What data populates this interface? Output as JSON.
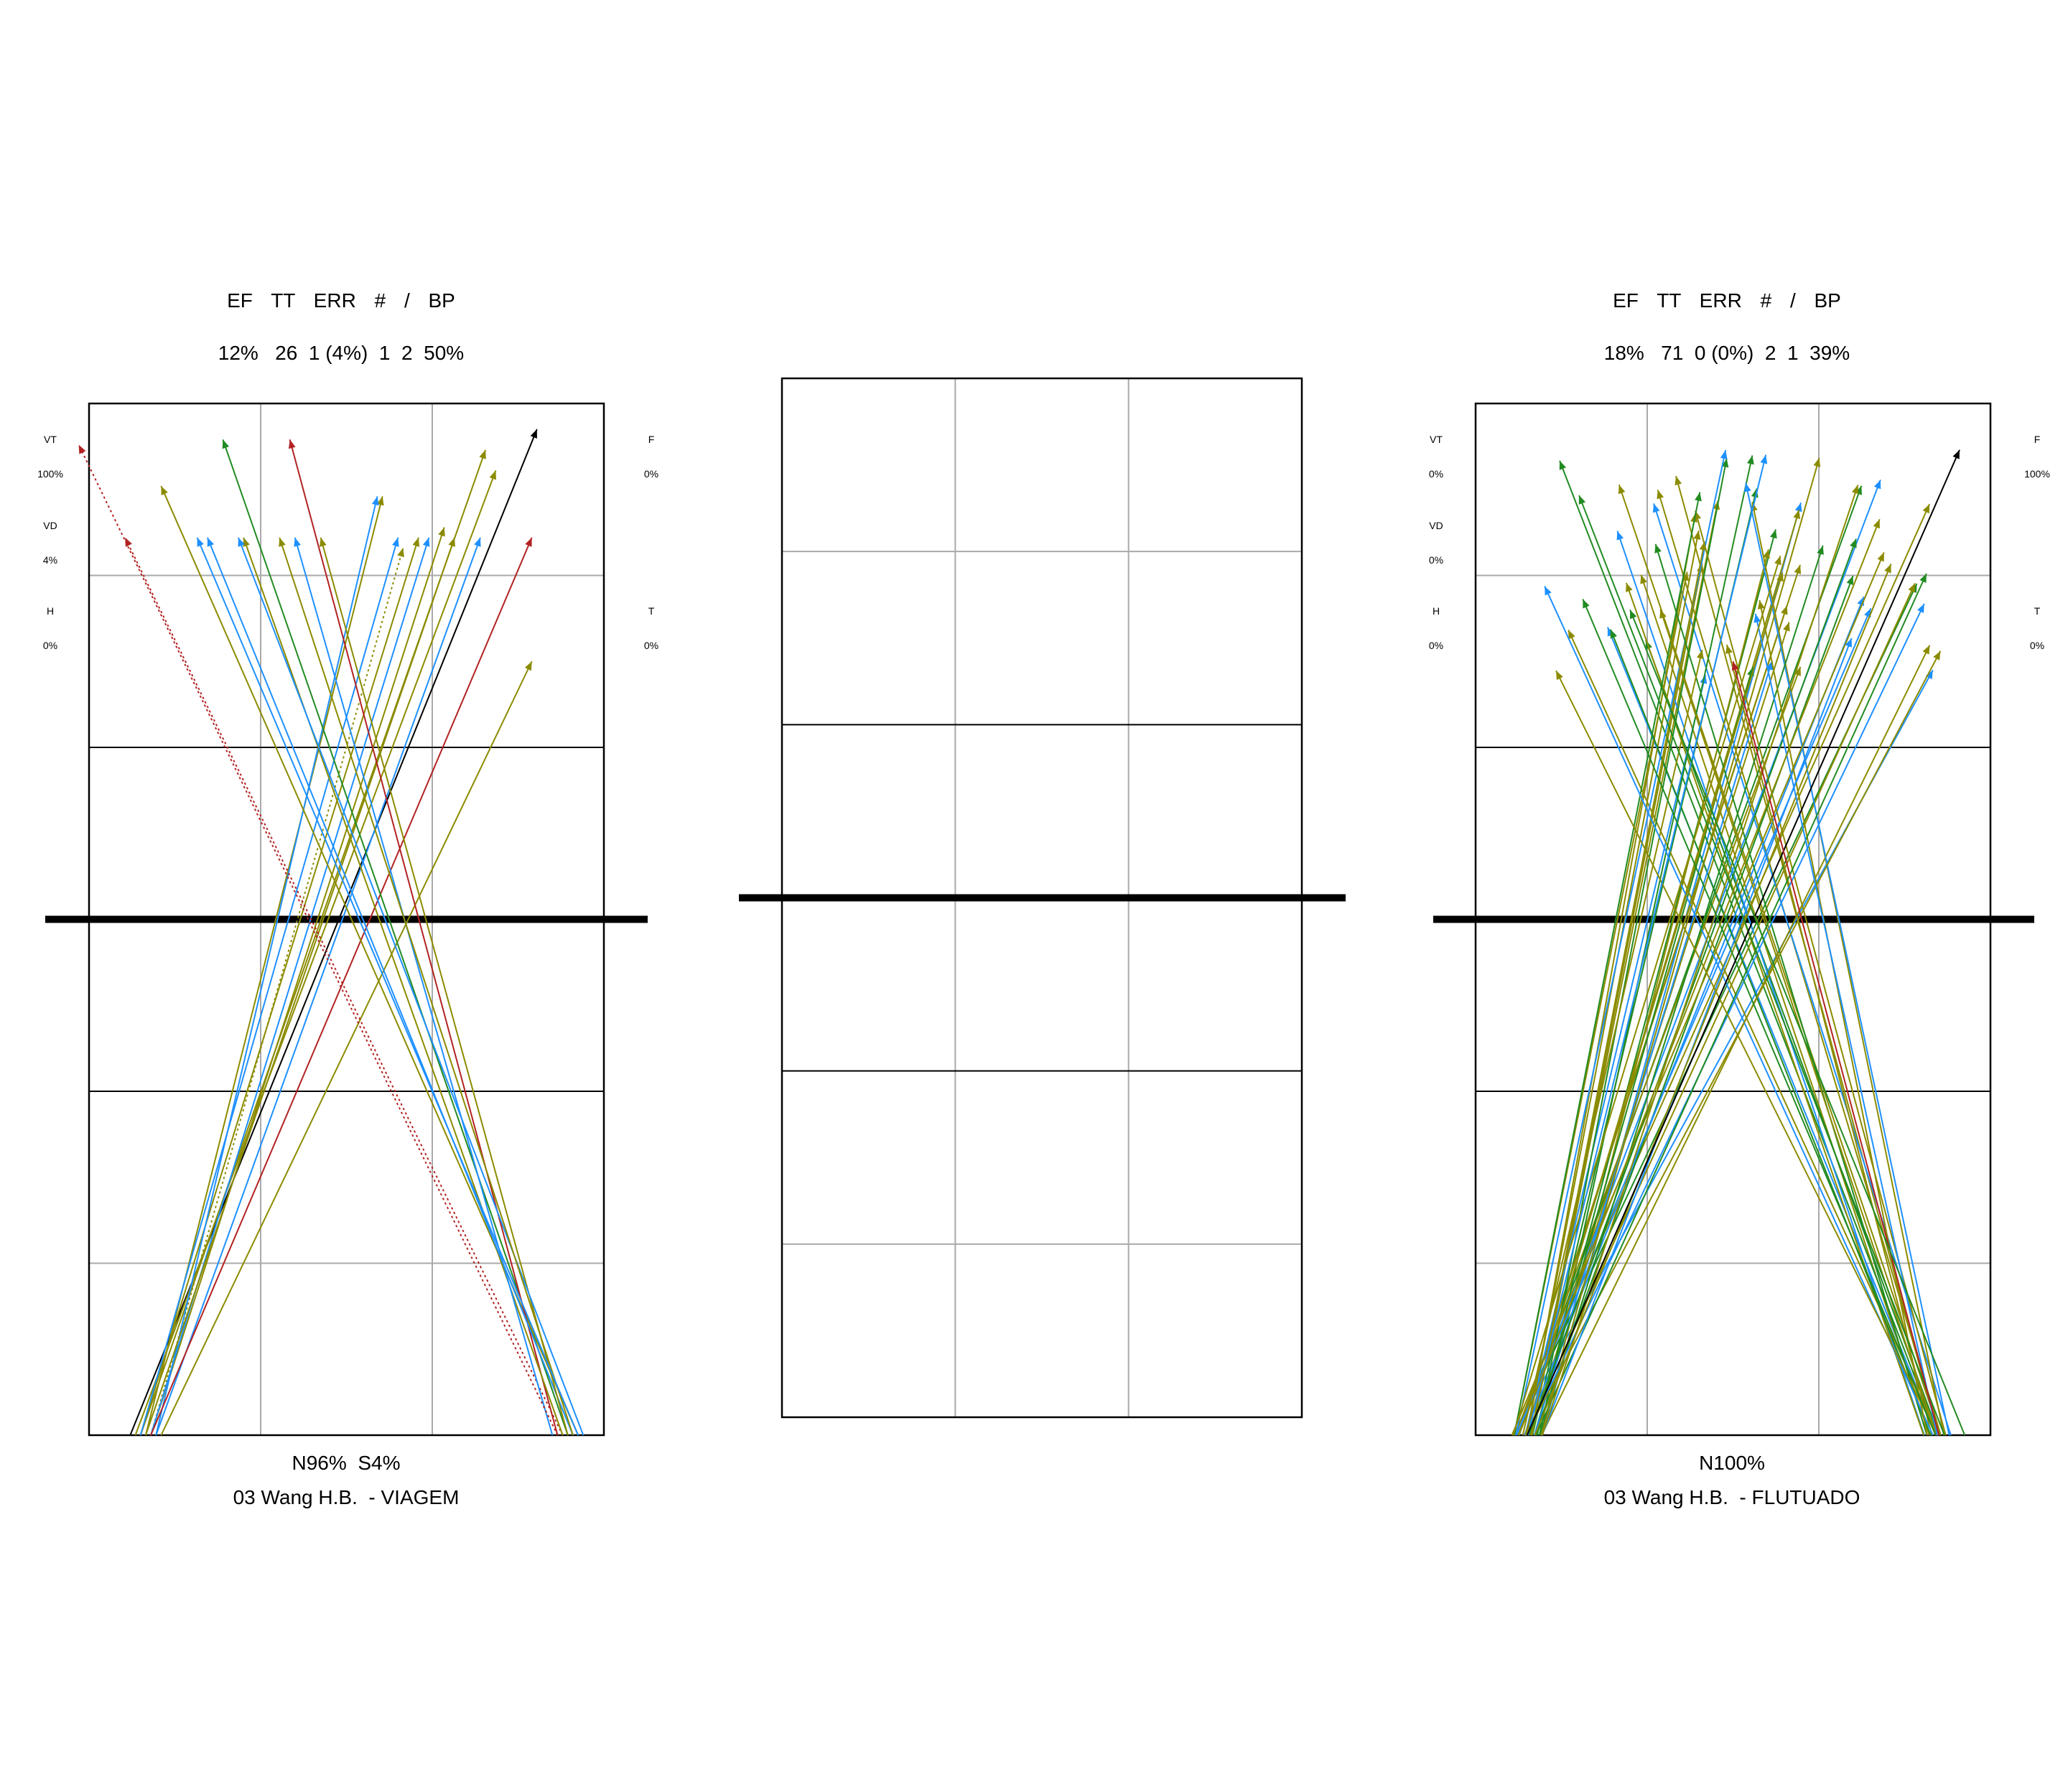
{
  "panels": [
    {
      "id": "left",
      "header_labels": [
        "EF",
        "TT",
        "ERR",
        "#",
        "/",
        "BP"
      ],
      "header_values": "12%   26  1 (4%)  1  2  50%",
      "left_side": [
        {
          "label": "VT",
          "value": "100%"
        },
        {
          "label": "VD",
          "value": "4%"
        },
        {
          "label": "H",
          "value": "0%"
        }
      ],
      "right_side": [
        {
          "label": "F",
          "value": "0%"
        },
        {
          "label": "T",
          "value": "0%"
        }
      ],
      "footer_pct": "N96%  S4%",
      "footer_name": "03 Wang H.B.  - VIAGEM"
    },
    {
      "id": "center"
    },
    {
      "id": "right",
      "header_labels": [
        "EF",
        "TT",
        "ERR",
        "#",
        "/",
        "BP"
      ],
      "header_values": "18%   71  0 (0%)  2  1  39%",
      "left_side": [
        {
          "label": "VT",
          "value": "0%"
        },
        {
          "label": "VD",
          "value": "0%"
        },
        {
          "label": "H",
          "value": "0%"
        }
      ],
      "right_side": [
        {
          "label": "F",
          "value": "100%"
        },
        {
          "label": "T",
          "value": "0%"
        }
      ],
      "footer_pct": "N100%",
      "footer_name": "03 Wang H.B.  - FLUTUADO"
    }
  ],
  "colors": {
    "olive": "#8B8B00",
    "blue": "#1E90FF",
    "green": "#228B22",
    "darkred": "#B22222",
    "black": "#000000",
    "grid": "#AAAAAA"
  },
  "chart_data": [
    {
      "type": "scatter",
      "name": "serve trajectories",
      "coordinate_units": "court fraction: x 0=left sideline 1=right sideline; y 0=far baseline 1=serving baseline",
      "trajectories": [
        {
          "from": [
            0.08,
            1.0
          ],
          "to": [
            0.87,
            0.025
          ],
          "color": "black"
        },
        {
          "from": [
            0.1,
            1.0
          ],
          "to": [
            0.77,
            0.045
          ],
          "color": "olive"
        },
        {
          "from": [
            0.09,
            1.0
          ],
          "to": [
            0.79,
            0.065
          ],
          "color": "olive"
        },
        {
          "from": [
            0.11,
            1.0
          ],
          "to": [
            0.57,
            0.09
          ],
          "color": "olive"
        },
        {
          "from": [
            0.12,
            1.0
          ],
          "to": [
            0.61,
            0.14
          ],
          "color": "olive",
          "style": "dotted"
        },
        {
          "from": [
            0.1,
            1.0
          ],
          "to": [
            0.64,
            0.13
          ],
          "color": "olive"
        },
        {
          "from": [
            0.12,
            1.0
          ],
          "to": [
            0.69,
            0.12
          ],
          "color": "olive"
        },
        {
          "from": [
            0.13,
            1.0
          ],
          "to": [
            0.56,
            0.09
          ],
          "color": "blue"
        },
        {
          "from": [
            0.12,
            1.0
          ],
          "to": [
            0.66,
            0.13
          ],
          "color": "blue"
        },
        {
          "from": [
            0.1,
            1.0
          ],
          "to": [
            0.6,
            0.13
          ],
          "color": "blue"
        },
        {
          "from": [
            0.13,
            1.0
          ],
          "to": [
            0.76,
            0.13
          ],
          "color": "blue"
        },
        {
          "from": [
            0.11,
            1.0
          ],
          "to": [
            0.71,
            0.13
          ],
          "color": "olive"
        },
        {
          "from": [
            0.12,
            1.0
          ],
          "to": [
            0.86,
            0.13
          ],
          "color": "darkred"
        },
        {
          "from": [
            0.14,
            1.0
          ],
          "to": [
            0.86,
            0.25
          ],
          "color": "olive"
        },
        {
          "from": [
            0.93,
            1.0
          ],
          "to": [
            0.26,
            0.035
          ],
          "color": "green"
        },
        {
          "from": [
            0.95,
            1.0
          ],
          "to": [
            0.14,
            0.08
          ],
          "color": "olive"
        },
        {
          "from": [
            0.91,
            1.0
          ],
          "to": [
            0.39,
            0.035
          ],
          "color": "darkred"
        },
        {
          "from": [
            0.92,
            1.0
          ],
          "to": [
            0.07,
            0.13
          ],
          "color": "darkred",
          "style": "dotted"
        },
        {
          "from": [
            0.92,
            1.0
          ],
          "to": [
            0.3,
            0.13
          ],
          "color": "olive"
        },
        {
          "from": [
            0.94,
            1.0
          ],
          "to": [
            0.23,
            0.13
          ],
          "color": "blue"
        },
        {
          "from": [
            0.93,
            1.0
          ],
          "to": [
            0.45,
            0.13
          ],
          "color": "olive"
        },
        {
          "from": [
            0.9,
            1.0
          ],
          "to": [
            0.4,
            0.13
          ],
          "color": "blue"
        },
        {
          "from": [
            0.96,
            1.0
          ],
          "to": [
            0.29,
            0.13
          ],
          "color": "blue"
        },
        {
          "from": [
            0.94,
            1.0
          ],
          "to": [
            0.37,
            0.13
          ],
          "color": "olive"
        },
        {
          "from": [
            0.91,
            1.0
          ],
          "to": [
            -0.02,
            0.04
          ],
          "color": "darkred",
          "style": "dotted"
        },
        {
          "from": [
            0.95,
            1.0
          ],
          "to": [
            0.21,
            0.13
          ],
          "color": "blue"
        }
      ]
    }
  ]
}
